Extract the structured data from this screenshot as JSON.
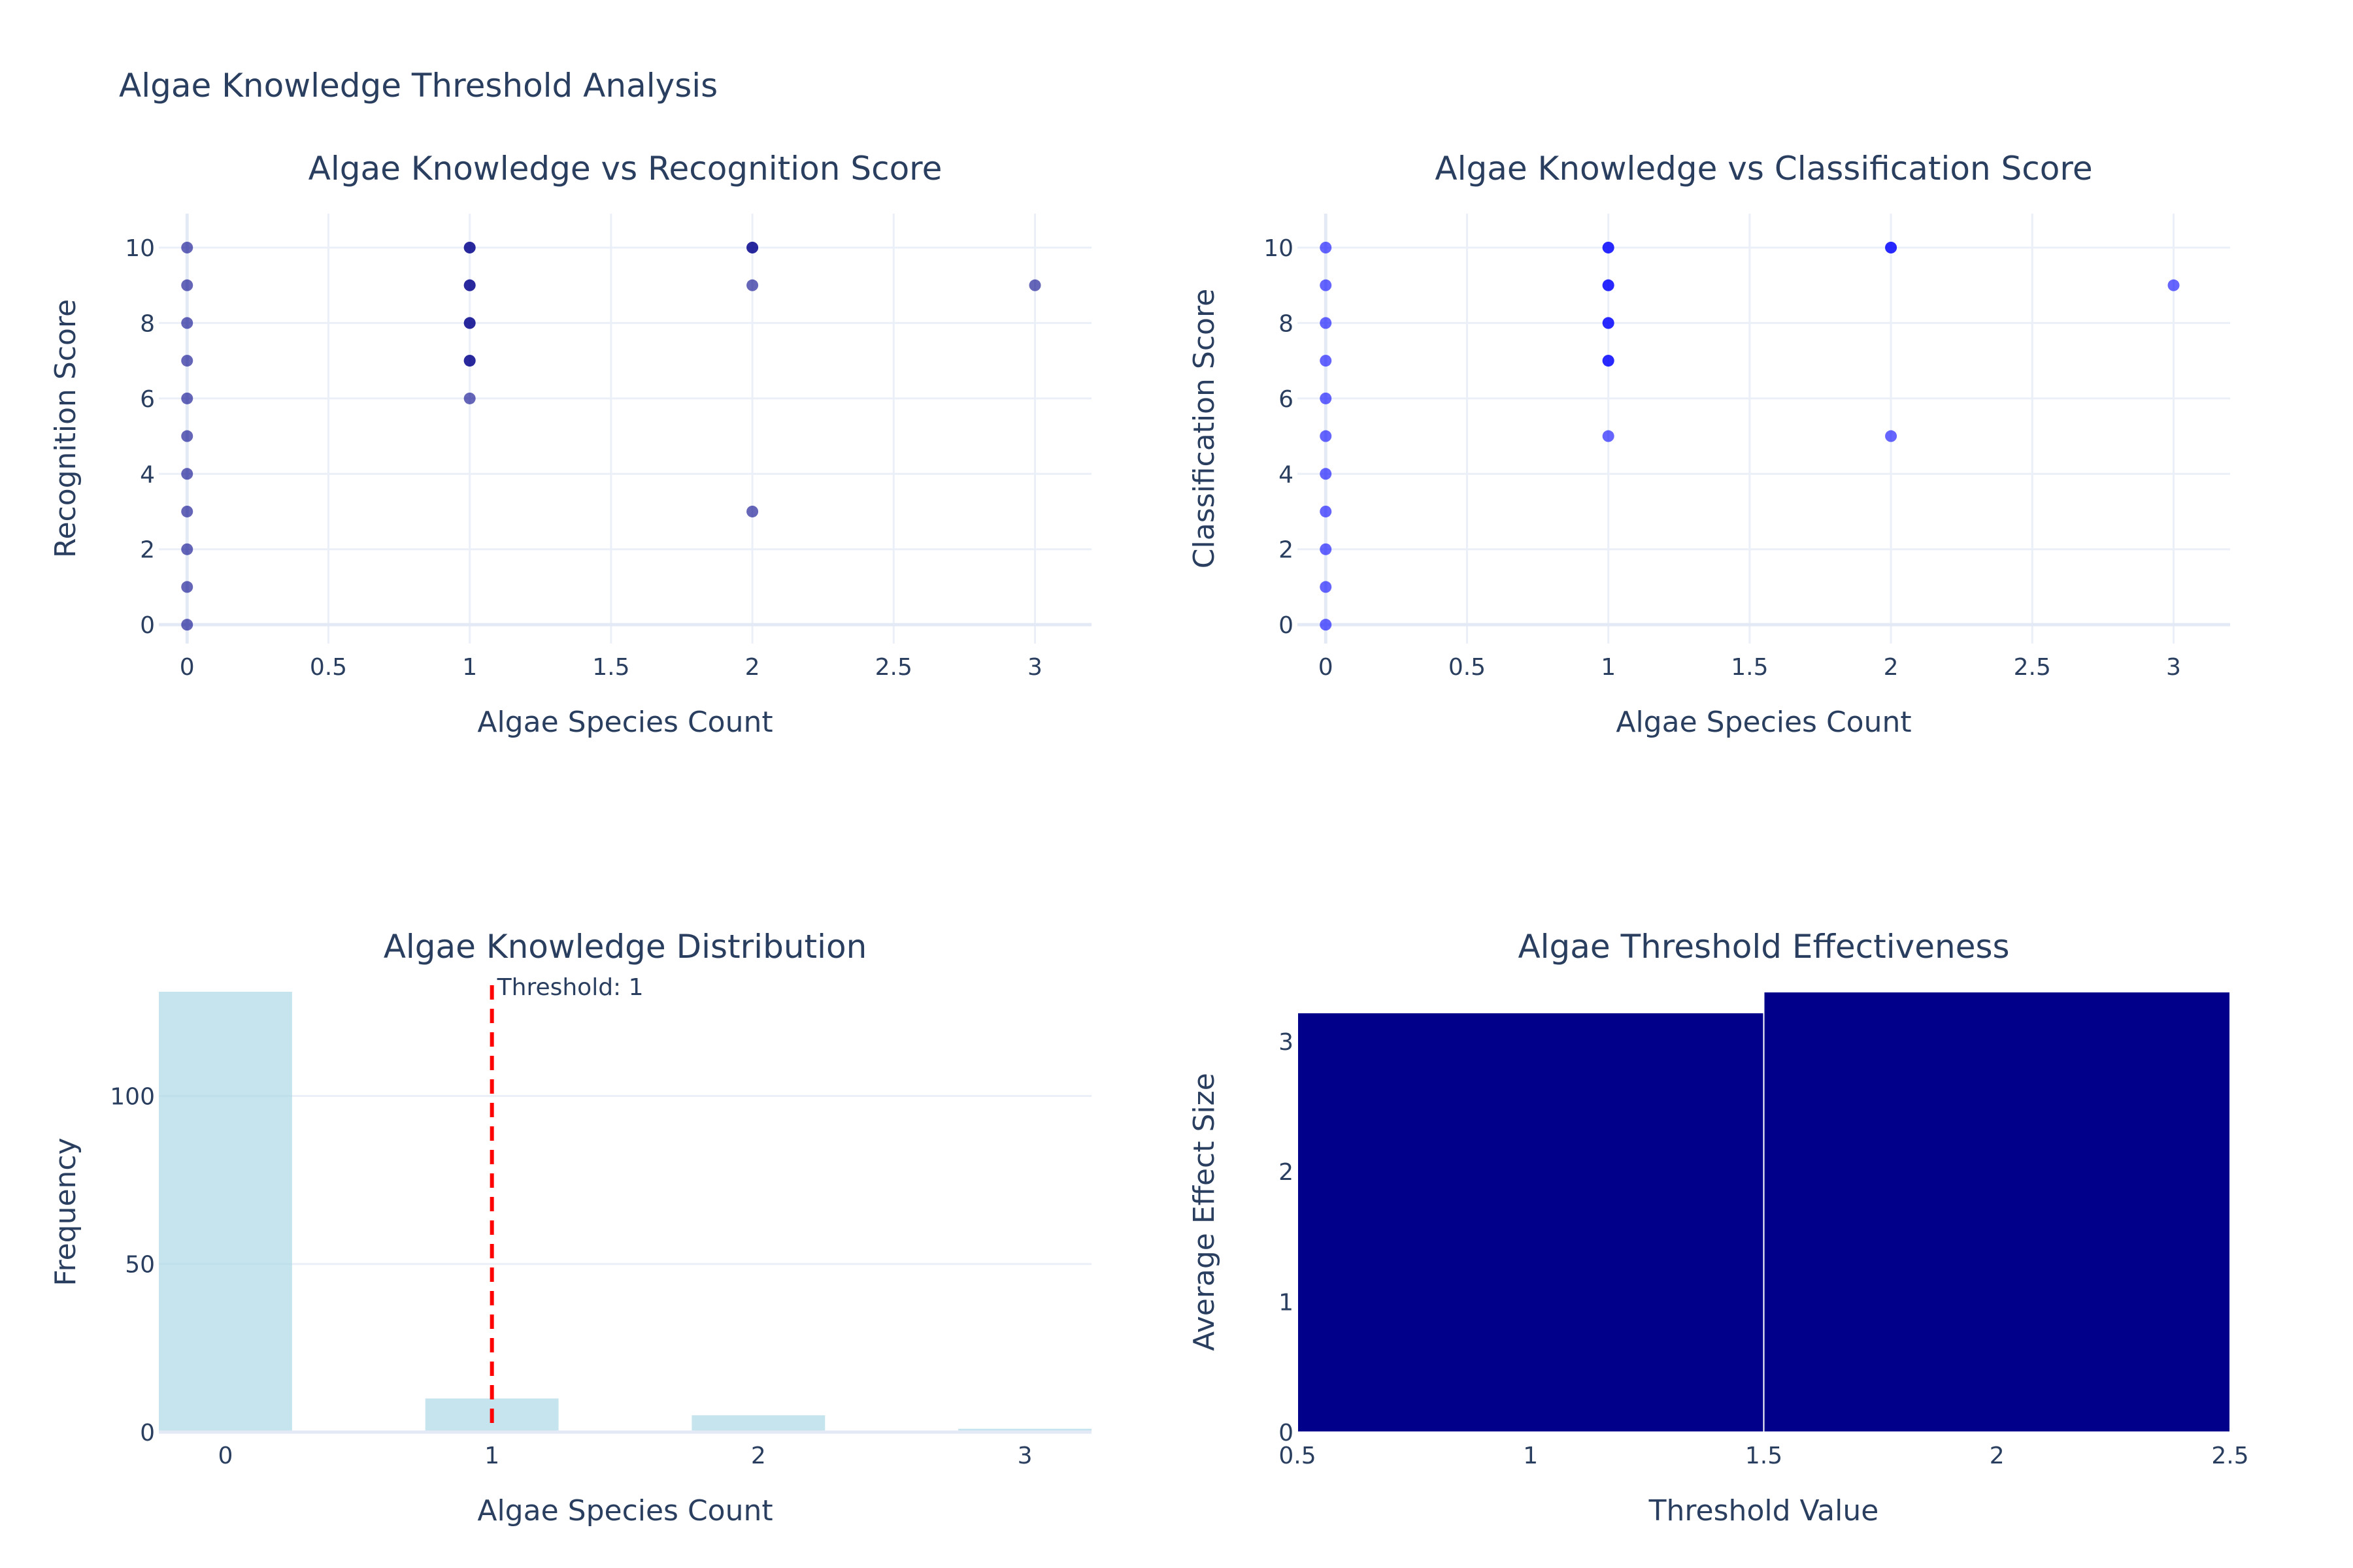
{
  "title": "Algae Knowledge Threshold Analysis",
  "colors": {
    "recognition_points": "#00008b",
    "classification_points": "#0000ff",
    "histogram": "#add8e6",
    "threshold_line": "#ff0000",
    "effect_bars": "#00008b"
  },
  "chart_data": [
    {
      "type": "scatter",
      "title": "Algae Knowledge vs Recognition Score",
      "xlabel": "Algae Species Count",
      "ylabel": "Recognition Score",
      "xlim": [
        -0.1,
        3.2
      ],
      "ylim": [
        -0.5,
        10.9
      ],
      "xticks": [
        0,
        0.5,
        1,
        1.5,
        2,
        2.5,
        3
      ],
      "xtick_labels": [
        "0",
        "0.5",
        "1",
        "1.5",
        "2",
        "2.5",
        "3"
      ],
      "yticks": [
        0,
        2,
        4,
        6,
        8,
        10
      ],
      "ytick_labels": [
        "0",
        "2",
        "4",
        "6",
        "8",
        "10"
      ],
      "marker_opacity": 0.6,
      "points": [
        {
          "x": 0,
          "y": 0
        },
        {
          "x": 0,
          "y": 1
        },
        {
          "x": 0,
          "y": 2
        },
        {
          "x": 0,
          "y": 3
        },
        {
          "x": 0,
          "y": 4
        },
        {
          "x": 0,
          "y": 5
        },
        {
          "x": 0,
          "y": 6
        },
        {
          "x": 0,
          "y": 7
        },
        {
          "x": 0,
          "y": 8
        },
        {
          "x": 0,
          "y": 9
        },
        {
          "x": 0,
          "y": 10
        },
        {
          "x": 1,
          "y": 6
        },
        {
          "x": 1,
          "y": 7
        },
        {
          "x": 1,
          "y": 7
        },
        {
          "x": 1,
          "y": 8
        },
        {
          "x": 1,
          "y": 8
        },
        {
          "x": 1,
          "y": 9
        },
        {
          "x": 1,
          "y": 9
        },
        {
          "x": 1,
          "y": 10
        },
        {
          "x": 1,
          "y": 10
        },
        {
          "x": 2,
          "y": 3
        },
        {
          "x": 2,
          "y": 9
        },
        {
          "x": 2,
          "y": 10
        },
        {
          "x": 2,
          "y": 10
        },
        {
          "x": 3,
          "y": 9
        }
      ]
    },
    {
      "type": "scatter",
      "title": "Algae Knowledge vs Classification Score",
      "xlabel": "Algae Species Count",
      "ylabel": "Classification Score",
      "xlim": [
        -0.1,
        3.2
      ],
      "ylim": [
        -0.5,
        10.9
      ],
      "xticks": [
        0,
        0.5,
        1,
        1.5,
        2,
        2.5,
        3
      ],
      "xtick_labels": [
        "0",
        "0.5",
        "1",
        "1.5",
        "2",
        "2.5",
        "3"
      ],
      "yticks": [
        0,
        2,
        4,
        6,
        8,
        10
      ],
      "ytick_labels": [
        "0",
        "2",
        "4",
        "6",
        "8",
        "10"
      ],
      "marker_opacity": 0.6,
      "points": [
        {
          "x": 0,
          "y": 0
        },
        {
          "x": 0,
          "y": 1
        },
        {
          "x": 0,
          "y": 2
        },
        {
          "x": 0,
          "y": 3
        },
        {
          "x": 0,
          "y": 4
        },
        {
          "x": 0,
          "y": 5
        },
        {
          "x": 0,
          "y": 6
        },
        {
          "x": 0,
          "y": 7
        },
        {
          "x": 0,
          "y": 8
        },
        {
          "x": 0,
          "y": 9
        },
        {
          "x": 0,
          "y": 10
        },
        {
          "x": 1,
          "y": 5
        },
        {
          "x": 1,
          "y": 7
        },
        {
          "x": 1,
          "y": 7
        },
        {
          "x": 1,
          "y": 8
        },
        {
          "x": 1,
          "y": 8
        },
        {
          "x": 1,
          "y": 9
        },
        {
          "x": 1,
          "y": 9
        },
        {
          "x": 1,
          "y": 10
        },
        {
          "x": 1,
          "y": 10
        },
        {
          "x": 2,
          "y": 5
        },
        {
          "x": 2,
          "y": 10
        },
        {
          "x": 2,
          "y": 10
        },
        {
          "x": 3,
          "y": 9
        }
      ]
    },
    {
      "type": "bar",
      "title": "Algae Knowledge Distribution",
      "xlabel": "Algae Species Count",
      "ylabel": "Frequency",
      "categories": [
        0,
        1,
        2,
        3
      ],
      "values": [
        131,
        10,
        5,
        1
      ],
      "bar_width": 0.5,
      "xlim": [
        -0.25,
        3.25
      ],
      "ylim": [
        0,
        131
      ],
      "xticks": [
        0,
        1,
        2,
        3
      ],
      "xtick_labels": [
        "0",
        "1",
        "2",
        "3"
      ],
      "yticks": [
        0,
        50,
        100
      ],
      "ytick_labels": [
        "0",
        "50",
        "100"
      ],
      "threshold": {
        "x": 1,
        "label": "Threshold: 1"
      }
    },
    {
      "type": "bar",
      "title": "Algae Threshold Effectiveness",
      "xlabel": "Threshold Value",
      "ylabel": "Average Effect Size",
      "categories": [
        1,
        2
      ],
      "values": [
        3.22,
        3.38
      ],
      "bar_width": 1,
      "xlim": [
        0.5,
        2.5
      ],
      "ylim": [
        0,
        3.38
      ],
      "xticks": [
        0.5,
        1,
        1.5,
        2,
        2.5
      ],
      "xtick_labels": [
        "0.5",
        "1",
        "1.5",
        "2",
        "2.5"
      ],
      "yticks": [
        0,
        1,
        2,
        3
      ],
      "ytick_labels": [
        "0",
        "1",
        "2",
        "3"
      ]
    }
  ]
}
